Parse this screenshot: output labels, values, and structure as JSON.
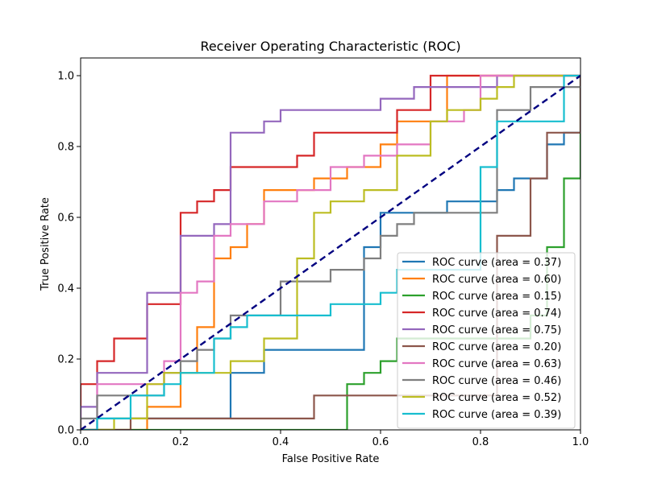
{
  "chart_data": {
    "type": "line",
    "title": "Receiver Operating Characteristic (ROC)",
    "xlabel": "False Positive Rate",
    "ylabel": "True Positive Rate",
    "xlim": [
      0.0,
      1.0
    ],
    "ylim": [
      0.0,
      1.05
    ],
    "xticks": [
      "0.0",
      "0.2",
      "0.4",
      "0.6",
      "0.8",
      "1.0"
    ],
    "yticks": [
      "0.0",
      "0.2",
      "0.4",
      "0.6",
      "0.8",
      "1.0"
    ],
    "grid": false,
    "legend_position": "lower-right",
    "diagonal": {
      "x": [
        0,
        1
      ],
      "y": [
        0,
        1
      ],
      "color": "#000080",
      "style": "dashed"
    },
    "series": [
      {
        "name": "ROC curve (area = 0.37)",
        "color": "#1f77b4",
        "x": [
          0,
          0.033,
          0.033,
          0.3,
          0.3,
          0.367,
          0.367,
          0.567,
          0.567,
          0.6,
          0.6,
          0.733,
          0.733,
          0.833,
          0.833,
          0.867,
          0.867,
          0.933,
          0.933,
          0.967,
          0.967,
          1.0
        ],
        "y": [
          0,
          0,
          0.032,
          0.032,
          0.161,
          0.161,
          0.226,
          0.226,
          0.516,
          0.516,
          0.613,
          0.613,
          0.645,
          0.645,
          0.677,
          0.677,
          0.71,
          0.71,
          0.806,
          0.806,
          0.839,
          0.839
        ]
      },
      {
        "name": "ROC curve (area = 0.60)",
        "color": "#ff7f0e",
        "x": [
          0,
          0.133,
          0.133,
          0.2,
          0.2,
          0.233,
          0.233,
          0.267,
          0.267,
          0.3,
          0.3,
          0.333,
          0.333,
          0.367,
          0.367,
          0.467,
          0.467,
          0.533,
          0.533,
          0.6,
          0.6,
          0.633,
          0.633,
          0.667,
          0.667,
          0.7,
          0.7,
          0.733,
          0.733,
          1.0
        ],
        "y": [
          0,
          0,
          0.065,
          0.065,
          0.161,
          0.161,
          0.29,
          0.29,
          0.484,
          0.484,
          0.516,
          0.516,
          0.581,
          0.581,
          0.677,
          0.677,
          0.71,
          0.71,
          0.742,
          0.742,
          0.806,
          0.806,
          0.871,
          0.871,
          0.871,
          0.871,
          0.871,
          0.871,
          1.0,
          1.0
        ]
      },
      {
        "name": "ROC curve (area = 0.15)",
        "color": "#2ca02c",
        "x": [
          0,
          0.4,
          0.4,
          0.533,
          0.533,
          0.567,
          0.567,
          0.6,
          0.6,
          0.633,
          0.633,
          0.9,
          0.9,
          0.933,
          0.933,
          0.967,
          0.967,
          1.0,
          1.0
        ],
        "y": [
          0,
          0,
          0.0,
          0.0,
          0.129,
          0.129,
          0.161,
          0.161,
          0.194,
          0.194,
          0.258,
          0.258,
          0.323,
          0.323,
          0.516,
          0.516,
          0.71,
          0.71,
          1.0
        ]
      },
      {
        "name": "ROC curve (area = 0.74)",
        "color": "#d62728",
        "x": [
          0,
          0.0,
          0.033,
          0.033,
          0.067,
          0.067,
          0.133,
          0.133,
          0.2,
          0.2,
          0.233,
          0.233,
          0.267,
          0.267,
          0.3,
          0.3,
          0.433,
          0.433,
          0.467,
          0.467,
          0.633,
          0.633,
          0.7,
          0.7,
          1.0
        ],
        "y": [
          0,
          0.129,
          0.129,
          0.194,
          0.194,
          0.258,
          0.258,
          0.355,
          0.355,
          0.613,
          0.613,
          0.645,
          0.645,
          0.677,
          0.677,
          0.742,
          0.742,
          0.774,
          0.774,
          0.839,
          0.839,
          0.903,
          0.903,
          1.0,
          1.0
        ]
      },
      {
        "name": "ROC curve (area = 0.75)",
        "color": "#9467bd",
        "x": [
          0,
          0.0,
          0.033,
          0.033,
          0.133,
          0.133,
          0.2,
          0.2,
          0.267,
          0.267,
          0.3,
          0.3,
          0.367,
          0.367,
          0.4,
          0.4,
          0.6,
          0.6,
          0.667,
          0.667,
          0.833,
          0.833,
          1.0
        ],
        "y": [
          0,
          0.065,
          0.065,
          0.161,
          0.161,
          0.387,
          0.387,
          0.548,
          0.548,
          0.581,
          0.581,
          0.839,
          0.839,
          0.871,
          0.871,
          0.903,
          0.903,
          0.935,
          0.935,
          0.968,
          0.968,
          1.0,
          1.0
        ]
      },
      {
        "name": "ROC curve (area = 0.20)",
        "color": "#8c564b",
        "x": [
          0,
          0.1,
          0.1,
          0.467,
          0.467,
          0.833,
          0.833,
          0.9,
          0.9,
          0.933,
          0.933,
          1.0,
          1.0
        ],
        "y": [
          0,
          0,
          0.032,
          0.032,
          0.097,
          0.097,
          0.548,
          0.548,
          0.71,
          0.71,
          0.839,
          0.839,
          1.0
        ]
      },
      {
        "name": "ROC curve (area = 0.63)",
        "color": "#e377c2",
        "x": [
          0,
          0.033,
          0.033,
          0.167,
          0.167,
          0.2,
          0.2,
          0.233,
          0.233,
          0.267,
          0.267,
          0.3,
          0.3,
          0.367,
          0.367,
          0.433,
          0.433,
          0.5,
          0.5,
          0.567,
          0.567,
          0.633,
          0.633,
          0.7,
          0.7,
          0.767,
          0.767,
          0.8,
          0.8,
          1.0
        ],
        "y": [
          0,
          0,
          0.129,
          0.129,
          0.194,
          0.194,
          0.387,
          0.387,
          0.419,
          0.419,
          0.548,
          0.548,
          0.581,
          0.581,
          0.645,
          0.645,
          0.677,
          0.677,
          0.742,
          0.742,
          0.774,
          0.774,
          0.806,
          0.806,
          0.871,
          0.871,
          0.903,
          0.903,
          1.0,
          1.0
        ]
      },
      {
        "name": "ROC curve (area = 0.46)",
        "color": "#7f7f7f",
        "x": [
          0,
          0.0,
          0.033,
          0.033,
          0.167,
          0.167,
          0.2,
          0.2,
          0.233,
          0.233,
          0.267,
          0.267,
          0.3,
          0.3,
          0.4,
          0.4,
          0.433,
          0.433,
          0.5,
          0.5,
          0.567,
          0.567,
          0.6,
          0.6,
          0.633,
          0.633,
          0.667,
          0.667,
          0.833,
          0.833,
          0.9,
          0.9,
          1.0
        ],
        "y": [
          0,
          0.032,
          0.032,
          0.097,
          0.097,
          0.161,
          0.161,
          0.194,
          0.194,
          0.226,
          0.226,
          0.258,
          0.258,
          0.323,
          0.323,
          0.419,
          0.419,
          0.419,
          0.419,
          0.452,
          0.452,
          0.484,
          0.484,
          0.548,
          0.548,
          0.581,
          0.581,
          0.613,
          0.613,
          0.903,
          0.903,
          0.968,
          0.968
        ]
      },
      {
        "name": "ROC curve (area = 0.52)",
        "color": "#bcbd22",
        "x": [
          0,
          0.067,
          0.067,
          0.133,
          0.133,
          0.167,
          0.167,
          0.3,
          0.3,
          0.367,
          0.367,
          0.433,
          0.433,
          0.467,
          0.467,
          0.5,
          0.5,
          0.567,
          0.567,
          0.633,
          0.633,
          0.7,
          0.7,
          0.733,
          0.733,
          0.8,
          0.8,
          0.833,
          0.833,
          0.867,
          0.867,
          1.0
        ],
        "y": [
          0,
          0,
          0.032,
          0.032,
          0.129,
          0.129,
          0.161,
          0.161,
          0.194,
          0.194,
          0.258,
          0.258,
          0.484,
          0.484,
          0.613,
          0.613,
          0.645,
          0.645,
          0.677,
          0.677,
          0.774,
          0.774,
          0.871,
          0.871,
          0.903,
          0.903,
          0.935,
          0.935,
          0.968,
          0.968,
          1.0,
          1.0
        ]
      },
      {
        "name": "ROC curve (area = 0.39)",
        "color": "#17becf",
        "x": [
          0,
          0.033,
          0.033,
          0.1,
          0.1,
          0.167,
          0.167,
          0.2,
          0.2,
          0.267,
          0.267,
          0.3,
          0.3,
          0.333,
          0.333,
          0.5,
          0.5,
          0.6,
          0.6,
          0.633,
          0.633,
          0.8,
          0.8,
          0.833,
          0.833,
          0.967,
          0.967,
          1.0
        ],
        "y": [
          0,
          0,
          0.032,
          0.032,
          0.097,
          0.097,
          0.129,
          0.129,
          0.161,
          0.161,
          0.258,
          0.258,
          0.29,
          0.29,
          0.323,
          0.323,
          0.355,
          0.355,
          0.387,
          0.387,
          0.452,
          0.452,
          0.742,
          0.742,
          0.871,
          0.871,
          1.0,
          1.0
        ]
      }
    ]
  }
}
